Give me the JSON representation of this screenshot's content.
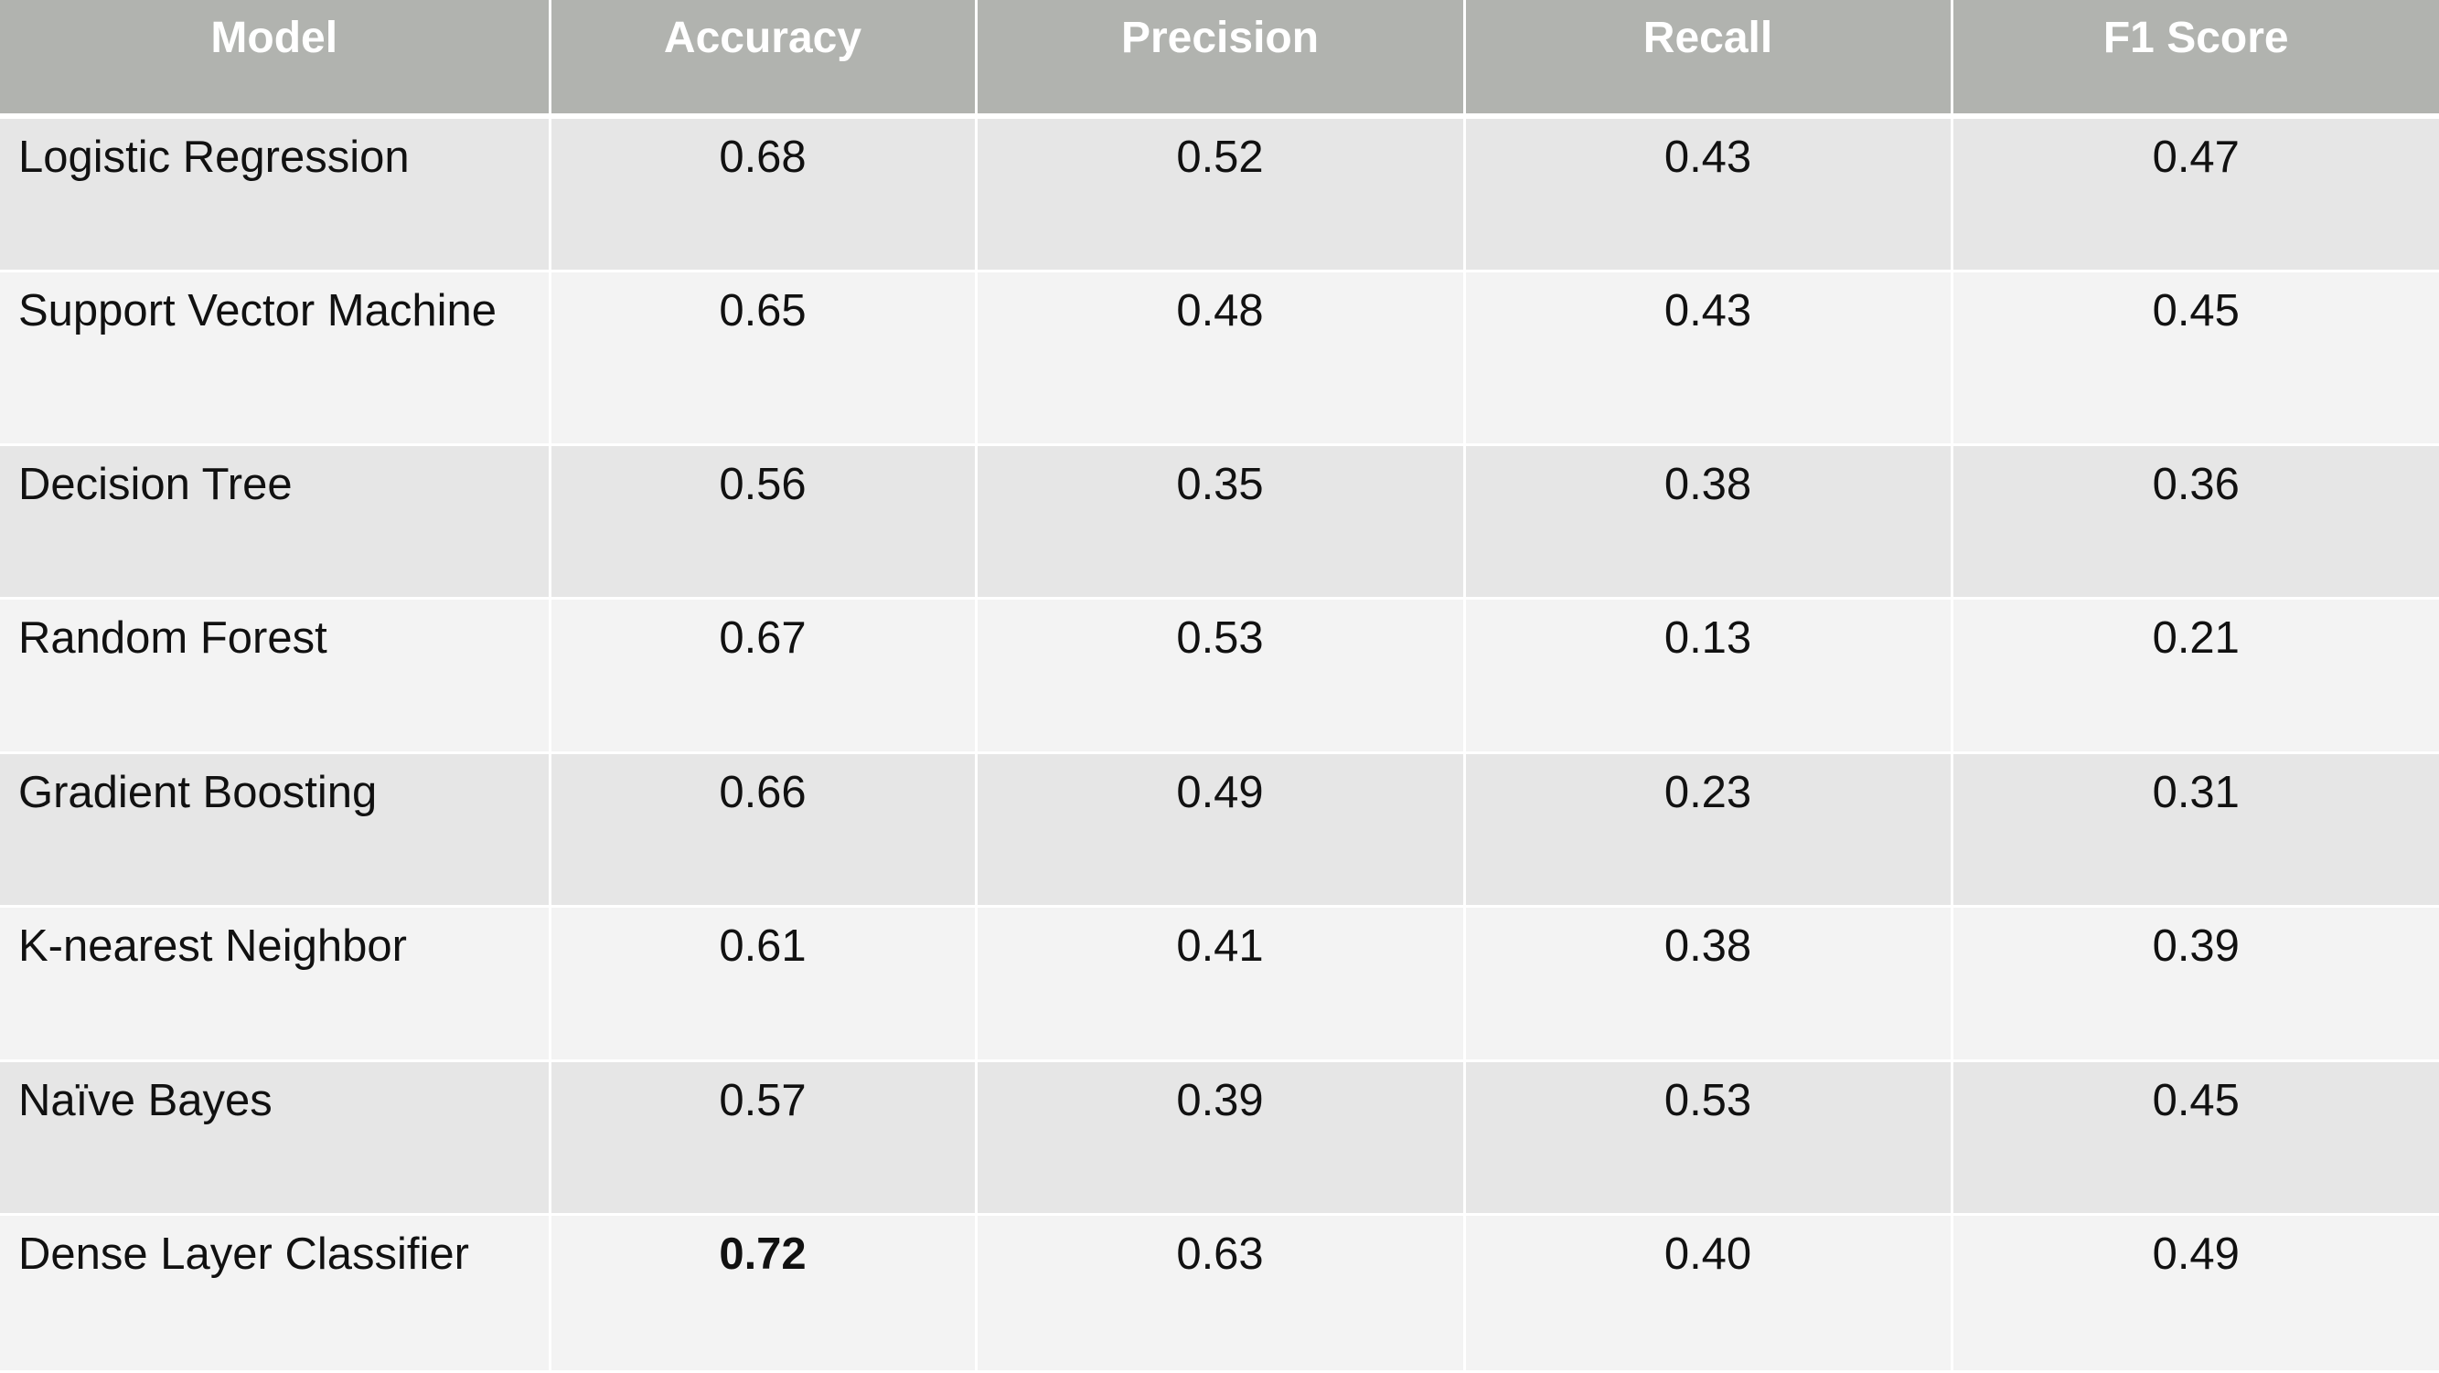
{
  "table": {
    "headers": [
      "Model",
      "Accuracy",
      "Precision",
      "Recall",
      "F1 Score"
    ],
    "rows": [
      {
        "model": "Logistic Regression",
        "accuracy": "0.68",
        "precision": "0.52",
        "recall": "0.43",
        "f1": "0.47"
      },
      {
        "model": "Support Vector Machine",
        "accuracy": "0.65",
        "precision": "0.48",
        "recall": "0.43",
        "f1": "0.45"
      },
      {
        "model": "Decision Tree",
        "accuracy": "0.56",
        "precision": "0.35",
        "recall": "0.38",
        "f1": "0.36"
      },
      {
        "model": "Random Forest",
        "accuracy": "0.67",
        "precision": "0.53",
        "recall": "0.13",
        "f1": "0.21"
      },
      {
        "model": "Gradient Boosting",
        "accuracy": "0.66",
        "precision": "0.49",
        "recall": "0.23",
        "f1": "0.31"
      },
      {
        "model": "K-nearest Neighbor",
        "accuracy": "0.61",
        "precision": "0.41",
        "recall": "0.38",
        "f1": "0.39"
      },
      {
        "model": "Naïve Bayes",
        "accuracy": "0.57",
        "precision": "0.39",
        "recall": "0.53",
        "f1": "0.45"
      },
      {
        "model": "Dense Layer Classifier",
        "accuracy": "0.72",
        "precision": "0.63",
        "recall": "0.40",
        "f1": "0.49"
      }
    ],
    "highlighted_value": "0.72"
  },
  "colors": {
    "header_bg": "#b1b3af",
    "header_text": "#ffffff",
    "row_dark": "#e6e6e6",
    "row_light": "#f3f3f3"
  }
}
